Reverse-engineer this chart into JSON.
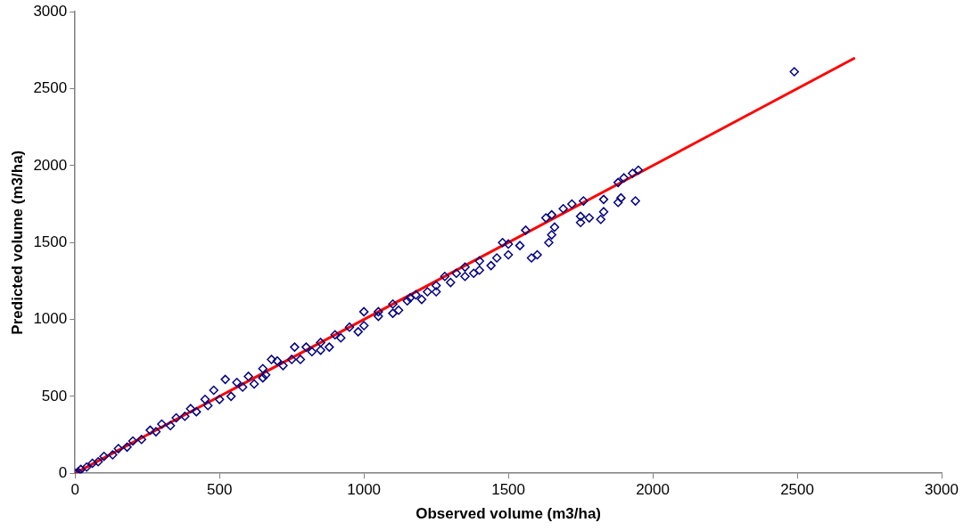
{
  "chart_data": {
    "type": "scatter",
    "xlabel": "Observed volume (m3/ha)",
    "ylabel": "Predicted volume (m3/ha)",
    "xlim": [
      0,
      3000
    ],
    "ylim": [
      0,
      3000
    ],
    "xticks": [
      0,
      500,
      1000,
      1500,
      2000,
      2500,
      3000
    ],
    "yticks": [
      0,
      500,
      1000,
      1500,
      2000,
      2500,
      3000
    ],
    "grid": false,
    "legend": false,
    "series": [
      {
        "type": "scatter",
        "color": "#000080",
        "marker": "diamond",
        "x": [
          0,
          10,
          20,
          40,
          60,
          80,
          100,
          130,
          150,
          180,
          200,
          230,
          260,
          280,
          300,
          330,
          350,
          380,
          400,
          420,
          450,
          460,
          480,
          500,
          520,
          540,
          560,
          580,
          600,
          620,
          650,
          650,
          660,
          680,
          700,
          720,
          750,
          760,
          780,
          800,
          820,
          850,
          850,
          880,
          900,
          920,
          950,
          980,
          1000,
          1000,
          1050,
          1050,
          1100,
          1100,
          1120,
          1150,
          1160,
          1180,
          1200,
          1220,
          1250,
          1250,
          1280,
          1300,
          1320,
          1350,
          1350,
          1380,
          1400,
          1400,
          1440,
          1460,
          1480,
          1500,
          1500,
          1540,
          1560,
          1580,
          1600,
          1630,
          1640,
          1650,
          1650,
          1660,
          1690,
          1720,
          1750,
          1750,
          1760,
          1780,
          1820,
          1830,
          1830,
          1880,
          1880,
          1890,
          1900,
          1930,
          1940,
          1950,
          2490
        ],
        "values": [
          0,
          8,
          25,
          40,
          65,
          75,
          110,
          120,
          160,
          170,
          210,
          220,
          280,
          270,
          320,
          310,
          360,
          370,
          420,
          400,
          480,
          440,
          540,
          480,
          610,
          500,
          590,
          560,
          630,
          580,
          680,
          620,
          640,
          740,
          730,
          700,
          740,
          820,
          740,
          820,
          790,
          850,
          800,
          820,
          900,
          880,
          950,
          920,
          1050,
          960,
          1020,
          1050,
          1100,
          1040,
          1060,
          1120,
          1140,
          1160,
          1130,
          1180,
          1220,
          1180,
          1280,
          1240,
          1300,
          1280,
          1340,
          1300,
          1380,
          1320,
          1350,
          1400,
          1500,
          1490,
          1420,
          1480,
          1580,
          1400,
          1420,
          1660,
          1500,
          1550,
          1680,
          1600,
          1720,
          1750,
          1630,
          1670,
          1770,
          1660,
          1650,
          1700,
          1780,
          1890,
          1760,
          1790,
          1920,
          1950,
          1770,
          1970,
          2610
        ]
      },
      {
        "type": "line",
        "color": "#ff0000",
        "marker": "none",
        "x": [
          0,
          2700
        ],
        "values": [
          0,
          2700
        ]
      }
    ]
  }
}
